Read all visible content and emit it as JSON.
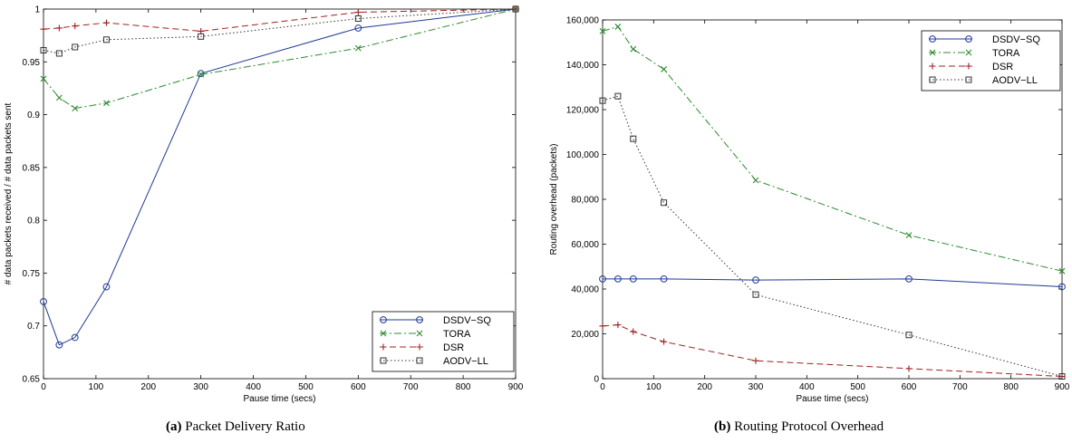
{
  "chart_data": [
    {
      "type": "line",
      "caption_label": "(a)",
      "caption_text": "Packet Delivery Ratio",
      "xlabel": "Pause time (secs)",
      "ylabel": "# data packets received / # data packets sent",
      "xlim": [
        0,
        900
      ],
      "ylim": [
        0.65,
        1.0
      ],
      "xticks": [
        0,
        100,
        200,
        300,
        400,
        500,
        600,
        700,
        800,
        900
      ],
      "yticks": [
        0.65,
        0.7,
        0.75,
        0.8,
        0.85,
        0.9,
        0.95,
        1.0
      ],
      "ytick_labels": [
        "0.65",
        "0.7",
        "0.75",
        "0.8",
        "0.85",
        "0.9",
        "0.95",
        "1"
      ],
      "x": [
        0,
        30,
        60,
        120,
        300,
        600,
        900
      ],
      "grid": false,
      "legend_position": "bottom-right",
      "series": [
        {
          "name": "DSDV−SQ",
          "color": "#1f3a93",
          "dash": "solid",
          "marker": "circle",
          "values": [
            0.723,
            0.682,
            0.689,
            0.737,
            0.939,
            0.982,
            1.0
          ]
        },
        {
          "name": "TORA",
          "color": "#2e8b2e",
          "dash": "dashdot",
          "marker": "x",
          "values": [
            0.934,
            0.916,
            0.906,
            0.911,
            0.938,
            0.963,
            1.0
          ]
        },
        {
          "name": "DSR",
          "color": "#a02020",
          "dash": "dashed",
          "marker": "plus",
          "values": [
            0.981,
            0.982,
            0.984,
            0.987,
            0.979,
            0.997,
            1.0
          ]
        },
        {
          "name": "AODV−LL",
          "color": "#333333",
          "dash": "dotted",
          "marker": "square",
          "values": [
            0.961,
            0.958,
            0.964,
            0.971,
            0.974,
            0.991,
            1.0
          ]
        }
      ]
    },
    {
      "type": "line",
      "caption_label": "(b)",
      "caption_text": "Routing Protocol Overhead",
      "xlabel": "Pause time (secs)",
      "ylabel": "Routing overhead (packets)",
      "xlim": [
        0,
        900
      ],
      "ylim": [
        0,
        160000
      ],
      "xticks": [
        0,
        100,
        200,
        300,
        400,
        500,
        600,
        700,
        800,
        900
      ],
      "yticks": [
        0,
        20000,
        40000,
        60000,
        80000,
        100000,
        120000,
        140000,
        160000
      ],
      "ytick_labels": [
        "0",
        "20,000",
        "40,000",
        "60,000",
        "80,000",
        "100,000",
        "120,000",
        "140,000",
        "160,000"
      ],
      "x": [
        0,
        30,
        60,
        120,
        300,
        600,
        900
      ],
      "grid": false,
      "legend_position": "top-right",
      "series": [
        {
          "name": "DSDV−SQ",
          "color": "#1f3a93",
          "dash": "solid",
          "marker": "circle",
          "values": [
            44500,
            44500,
            44500,
            44500,
            44000,
            44500,
            41000
          ]
        },
        {
          "name": "TORA",
          "color": "#2e8b2e",
          "dash": "dashdot",
          "marker": "x",
          "values": [
            155000,
            157000,
            147000,
            138000,
            88500,
            64000,
            48000
          ]
        },
        {
          "name": "DSR",
          "color": "#a02020",
          "dash": "dashed",
          "marker": "plus",
          "values": [
            23500,
            24000,
            21000,
            16500,
            8000,
            4500,
            1000
          ]
        },
        {
          "name": "AODV−LL",
          "color": "#333333",
          "dash": "dotted",
          "marker": "square",
          "values": [
            124000,
            126000,
            107000,
            78500,
            37500,
            19500,
            1000
          ]
        }
      ]
    }
  ]
}
